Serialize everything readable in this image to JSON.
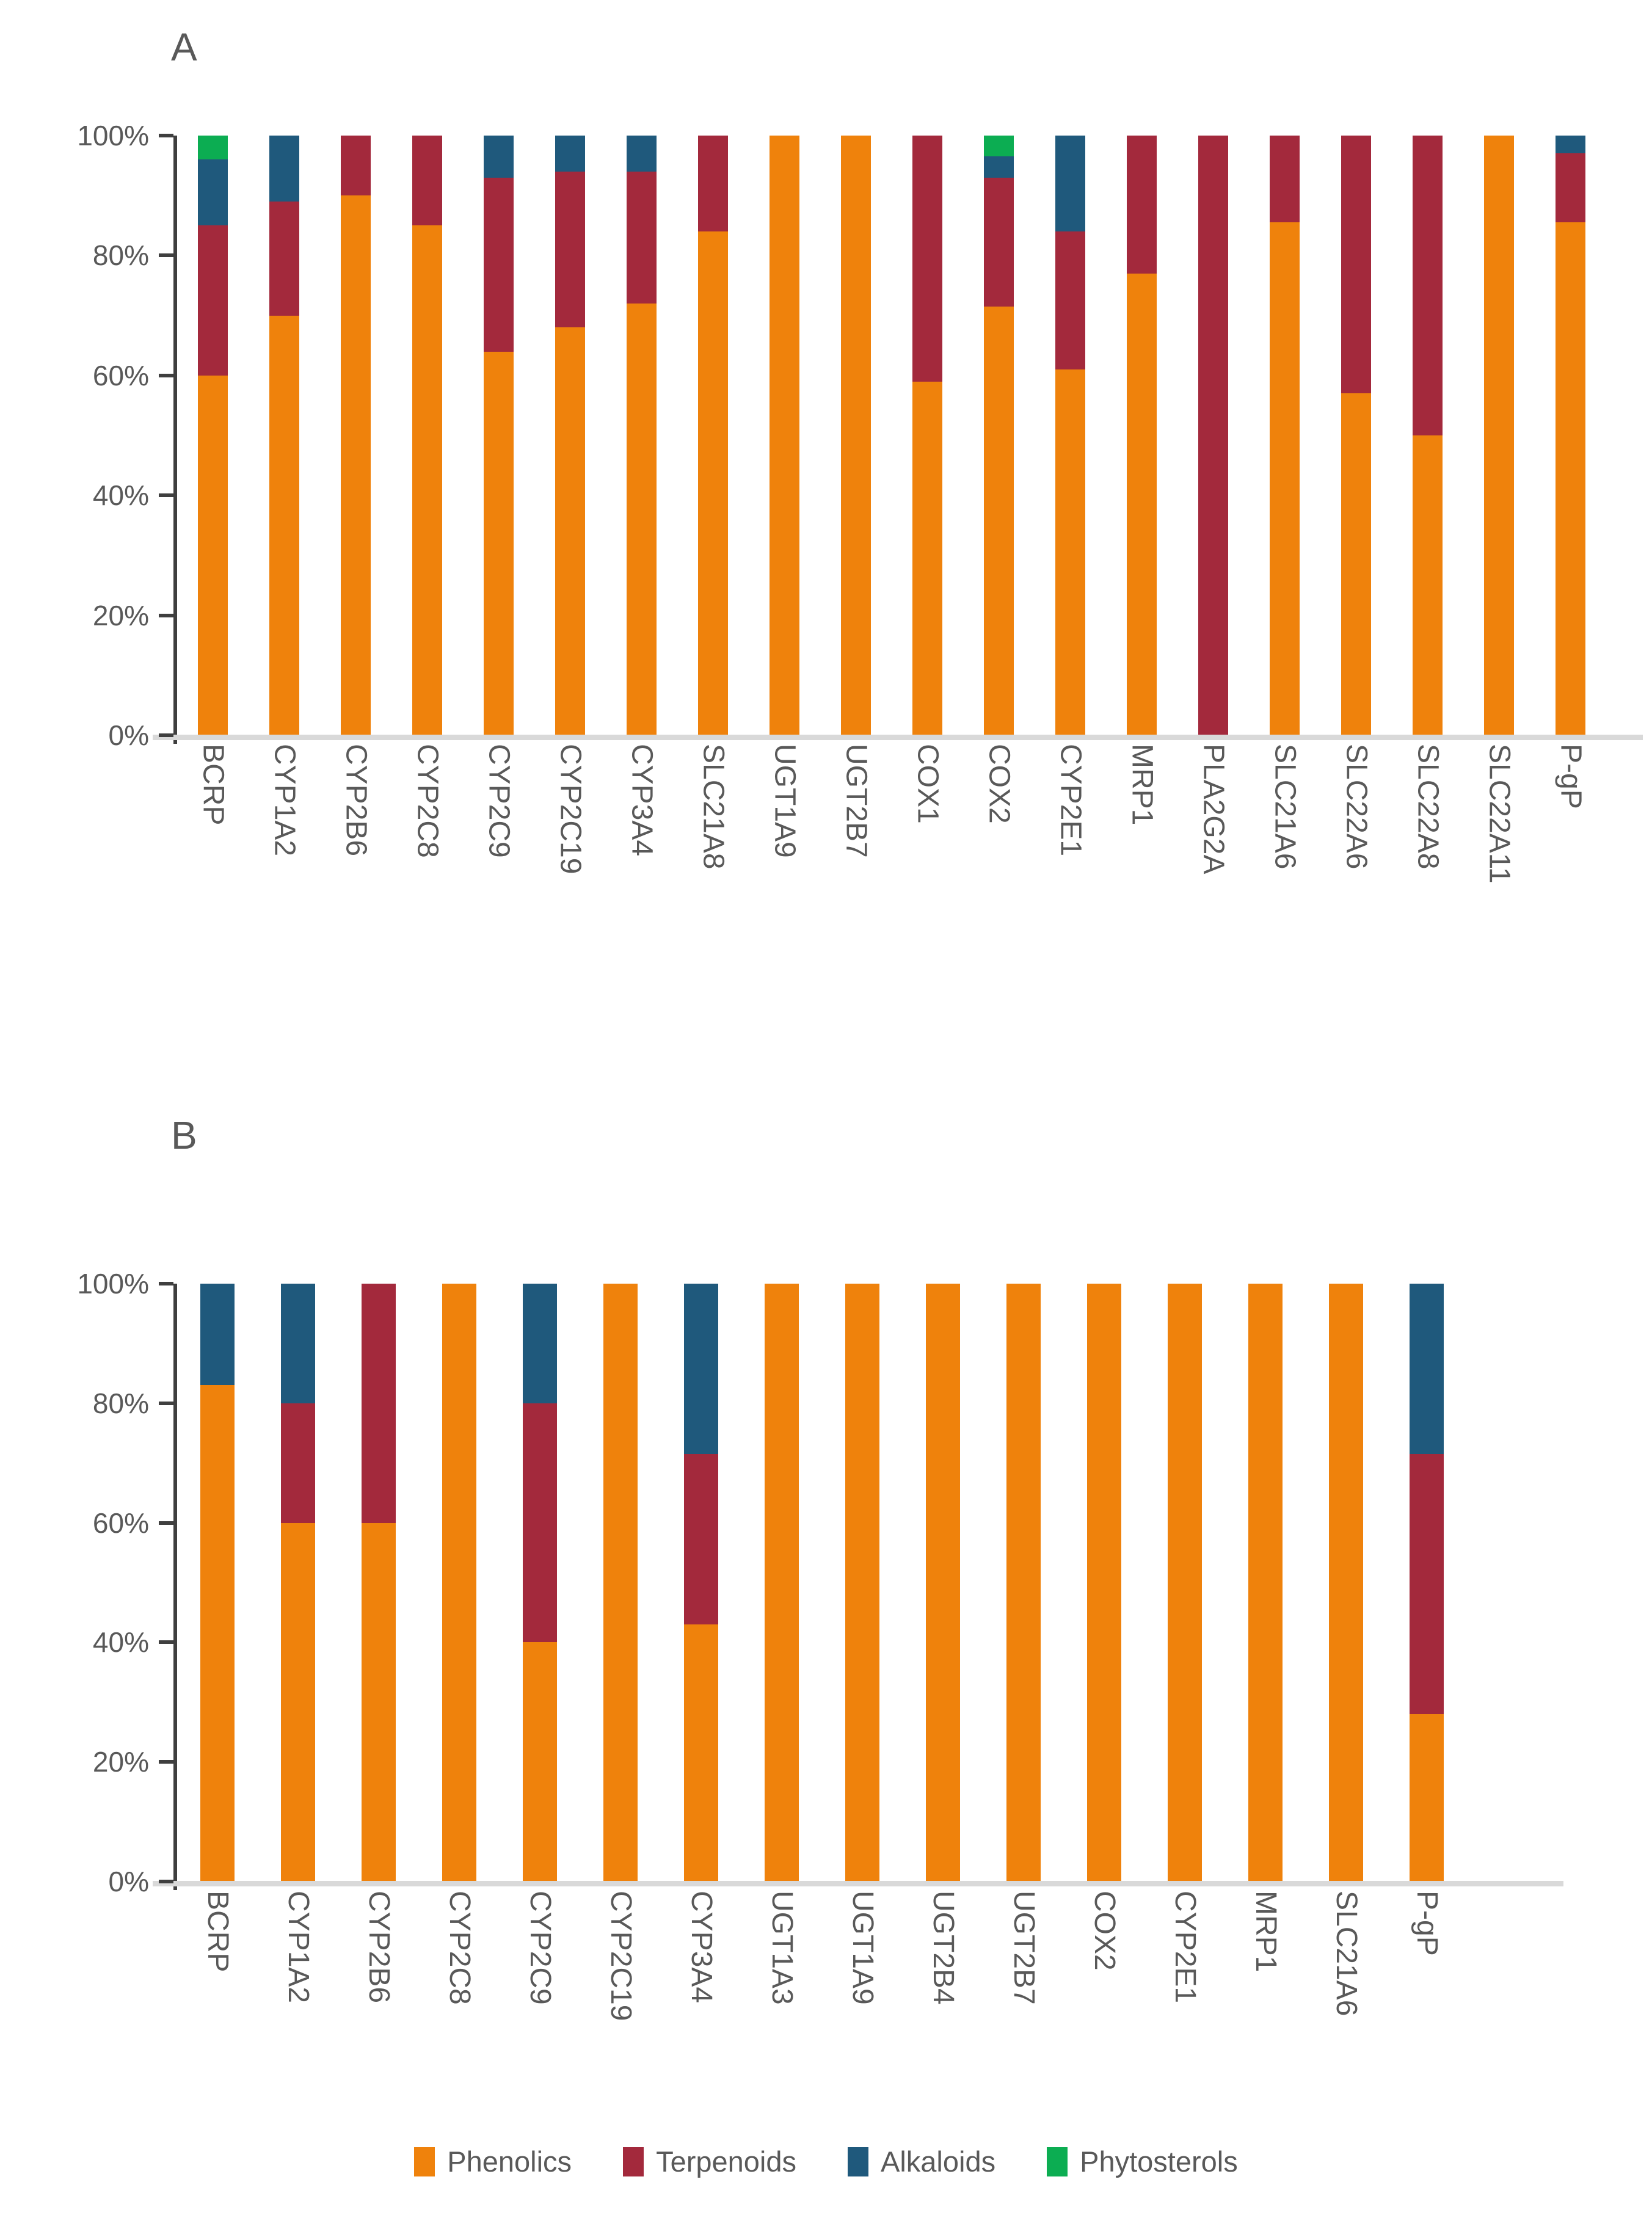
{
  "figure": {
    "panel_a_title": "A",
    "panel_b_title": "B"
  },
  "y_axis": {
    "tick_labels": [
      "100%",
      "80%",
      "60%",
      "40%",
      "20%",
      "0%"
    ]
  },
  "legend": {
    "items": [
      {
        "label": "Phenolics",
        "color": "#EF820C"
      },
      {
        "label": "Terpenoids",
        "color": "#A3293C"
      },
      {
        "label": "Alkaloids",
        "color": "#1F597C"
      },
      {
        "label": "Phytosterols",
        "color": "#0CAD52"
      }
    ]
  },
  "chart_data": [
    {
      "type": "bar",
      "stacked": true,
      "units": "percent",
      "title": "A",
      "ylim": [
        0,
        100
      ],
      "grid": false,
      "yticks": [
        "100%",
        "80%",
        "60%",
        "40%",
        "20%",
        "0%"
      ],
      "categories": [
        "BCRP",
        "CYP1A2",
        "CYP2B6",
        "CYP2C8",
        "CYP2C9",
        "CYP2C19",
        "CYP3A4",
        "SLC21A8",
        "UGT1A9",
        "UGT2B7",
        "COX1",
        "COX2",
        "CYP2E1",
        "MRP1",
        "PLA2G2A",
        "SLC21A6",
        "SLC22A6",
        "SLC22A8",
        "SLC22A11",
        "P-gP"
      ],
      "series": [
        {
          "name": "Phenolics",
          "color": "#EF820C",
          "values": [
            60,
            70,
            90,
            85,
            64,
            68,
            72,
            84,
            100,
            100,
            59,
            71.5,
            61,
            77,
            0,
            85.5,
            57,
            50,
            100,
            85.5
          ]
        },
        {
          "name": "Terpenoids",
          "color": "#A3293C",
          "values": [
            25,
            19,
            10,
            15,
            29,
            26,
            22,
            16,
            0,
            0,
            41,
            21.5,
            23,
            23,
            100,
            14.5,
            43,
            50,
            0,
            11.5
          ]
        },
        {
          "name": "Alkaloids",
          "color": "#1F597C",
          "values": [
            11,
            11,
            0,
            0,
            7,
            6,
            6,
            0,
            0,
            0,
            0,
            3.5,
            16,
            0,
            0,
            0,
            0,
            0,
            0,
            3
          ]
        },
        {
          "name": "Phytosterols",
          "color": "#0CAD52",
          "values": [
            4,
            0,
            0,
            0,
            0,
            0,
            0,
            0,
            0,
            0,
            0,
            3.5,
            0,
            0,
            0,
            0,
            0,
            0,
            0,
            0
          ]
        }
      ]
    },
    {
      "type": "bar",
      "stacked": true,
      "units": "percent",
      "title": "B",
      "ylim": [
        0,
        100
      ],
      "grid": false,
      "yticks": [
        "100%",
        "80%",
        "60%",
        "40%",
        "20%",
        "0%"
      ],
      "categories": [
        "BCRP",
        "CYP1A2",
        "CYP2B6",
        "CYP2C8",
        "CYP2C9",
        "CYP2C19",
        "CYP3A4",
        "UGT1A3",
        "UGT1A9",
        "UGT2B4",
        "UGT2B7",
        "COX2",
        "CYP2E1",
        "MRP1",
        "SLC21A6",
        "P-gP"
      ],
      "series": [
        {
          "name": "Phenolics",
          "color": "#EF820C",
          "values": [
            83,
            60,
            60,
            100,
            40,
            100,
            43,
            100,
            100,
            100,
            100,
            100,
            100,
            100,
            100,
            28
          ]
        },
        {
          "name": "Terpenoids",
          "color": "#A3293C",
          "values": [
            0,
            20,
            40,
            0,
            40,
            0,
            28.5,
            0,
            0,
            0,
            0,
            0,
            0,
            0,
            0,
            43.5
          ]
        },
        {
          "name": "Alkaloids",
          "color": "#1F597C",
          "values": [
            17,
            20,
            0,
            0,
            20,
            0,
            28.5,
            0,
            0,
            0,
            0,
            0,
            0,
            0,
            0,
            28.5
          ]
        }
      ]
    }
  ]
}
